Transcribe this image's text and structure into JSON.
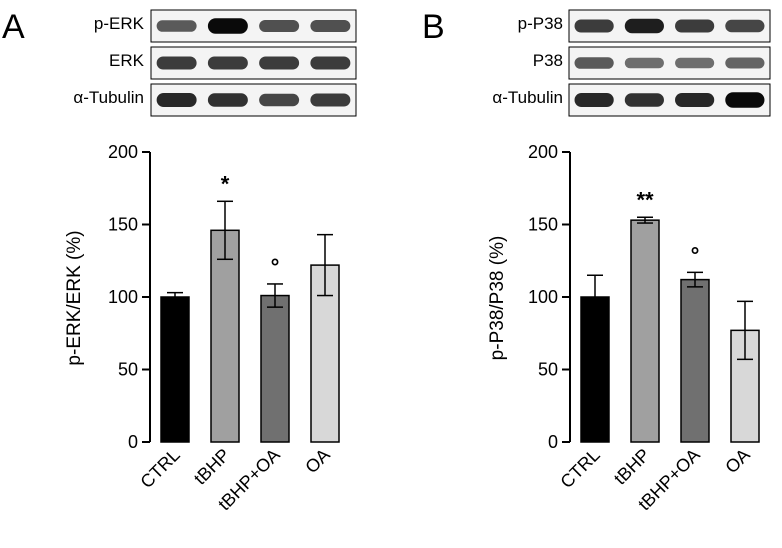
{
  "panels": [
    {
      "letter": "A",
      "blots": [
        {
          "label": "p-ERK",
          "intensities": [
            0.55,
            0.95,
            0.6,
            0.6
          ]
        },
        {
          "label": "ERK",
          "intensities": [
            0.7,
            0.7,
            0.7,
            0.7
          ]
        },
        {
          "label": "α-Tubulin",
          "intensities": [
            0.8,
            0.75,
            0.65,
            0.7
          ]
        }
      ]
    },
    {
      "letter": "B",
      "blots": [
        {
          "label": "p-P38",
          "intensities": [
            0.7,
            0.85,
            0.7,
            0.65
          ]
        },
        {
          "label": "P38",
          "intensities": [
            0.55,
            0.45,
            0.45,
            0.5
          ]
        },
        {
          "label": "α-Tubulin",
          "intensities": [
            0.8,
            0.75,
            0.8,
            0.95
          ]
        }
      ]
    }
  ],
  "chart_data": [
    {
      "type": "bar",
      "categories": [
        "CTRL",
        "tBHP",
        "tBHP+OA",
        "OA"
      ],
      "values": [
        100,
        146,
        101,
        122
      ],
      "errors": [
        3,
        20,
        8,
        21
      ],
      "colors": [
        "#000000",
        "#a0a0a0",
        "#707070",
        "#d8d8d8"
      ],
      "annotations": [
        "",
        "*",
        "°",
        ""
      ],
      "ylabel": "p-ERK/ERK (%)",
      "xlabel": "",
      "ylim": [
        0,
        200
      ],
      "yticks": [
        0,
        50,
        100,
        150,
        200
      ]
    },
    {
      "type": "bar",
      "categories": [
        "CTRL",
        "tBHP",
        "tBHP+OA",
        "OA"
      ],
      "values": [
        100,
        153,
        112,
        77
      ],
      "errors": [
        15,
        2,
        5,
        20
      ],
      "colors": [
        "#000000",
        "#a0a0a0",
        "#707070",
        "#d8d8d8"
      ],
      "annotations": [
        "",
        "**",
        "°",
        ""
      ],
      "ylabel": "p-P38/P38 (%)",
      "xlabel": "",
      "ylim": [
        0,
        200
      ],
      "yticks": [
        0,
        50,
        100,
        150,
        200
      ]
    }
  ]
}
